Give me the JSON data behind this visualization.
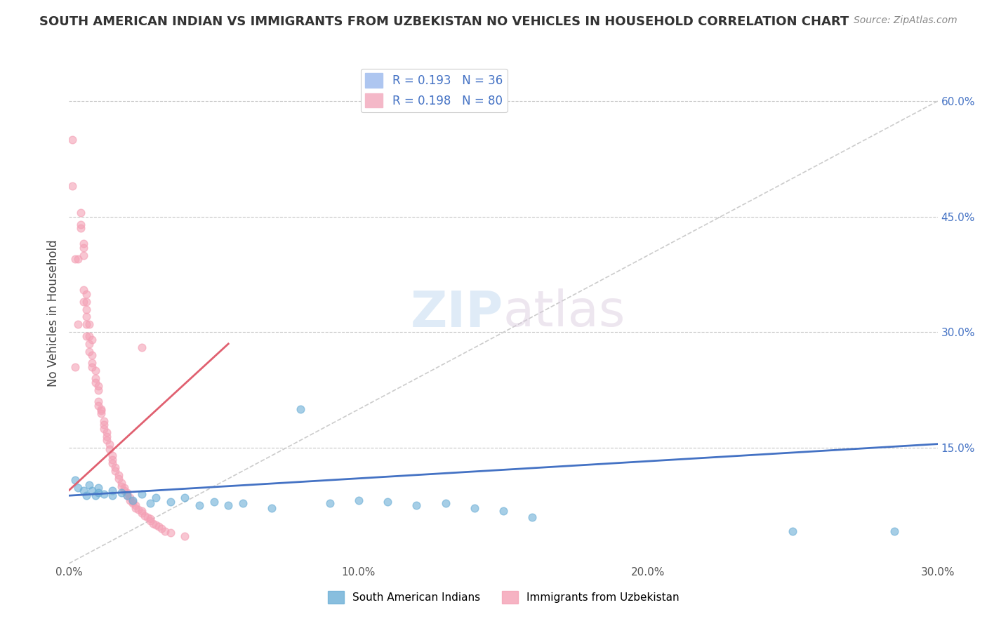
{
  "title": "SOUTH AMERICAN INDIAN VS IMMIGRANTS FROM UZBEKISTAN NO VEHICLES IN HOUSEHOLD CORRELATION CHART",
  "source": "Source: ZipAtlas.com",
  "ylabel": "No Vehicles in Household",
  "xlim": [
    0.0,
    0.3
  ],
  "ylim": [
    0.0,
    0.65
  ],
  "xtick_labels": [
    "0.0%",
    "10.0%",
    "20.0%",
    "30.0%"
  ],
  "xtick_values": [
    0.0,
    0.1,
    0.2,
    0.3
  ],
  "ytick_labels_right": [
    "15.0%",
    "30.0%",
    "45.0%",
    "60.0%"
  ],
  "ytick_values_right": [
    0.15,
    0.3,
    0.45,
    0.6
  ],
  "legend_entries": [
    {
      "label": "R = 0.193   N = 36",
      "color": "#aec6f0"
    },
    {
      "label": "R = 0.198   N = 80",
      "color": "#f4b8c8"
    }
  ],
  "legend_label_bottom": [
    "South American Indians",
    "Immigrants from Uzbekistan"
  ],
  "blue_scatter": [
    [
      0.002,
      0.108
    ],
    [
      0.003,
      0.098
    ],
    [
      0.005,
      0.095
    ],
    [
      0.006,
      0.088
    ],
    [
      0.007,
      0.102
    ],
    [
      0.008,
      0.095
    ],
    [
      0.009,
      0.088
    ],
    [
      0.01,
      0.092
    ],
    [
      0.01,
      0.098
    ],
    [
      0.012,
      0.09
    ],
    [
      0.015,
      0.095
    ],
    [
      0.015,
      0.088
    ],
    [
      0.018,
      0.092
    ],
    [
      0.02,
      0.088
    ],
    [
      0.022,
      0.082
    ],
    [
      0.025,
      0.09
    ],
    [
      0.028,
      0.078
    ],
    [
      0.03,
      0.085
    ],
    [
      0.035,
      0.08
    ],
    [
      0.04,
      0.085
    ],
    [
      0.045,
      0.075
    ],
    [
      0.05,
      0.08
    ],
    [
      0.055,
      0.075
    ],
    [
      0.06,
      0.078
    ],
    [
      0.07,
      0.072
    ],
    [
      0.08,
      0.2
    ],
    [
      0.09,
      0.078
    ],
    [
      0.1,
      0.082
    ],
    [
      0.11,
      0.08
    ],
    [
      0.12,
      0.075
    ],
    [
      0.13,
      0.078
    ],
    [
      0.14,
      0.072
    ],
    [
      0.15,
      0.068
    ],
    [
      0.16,
      0.06
    ],
    [
      0.25,
      0.042
    ],
    [
      0.285,
      0.042
    ]
  ],
  "pink_scatter": [
    [
      0.001,
      0.55
    ],
    [
      0.001,
      0.49
    ],
    [
      0.002,
      0.395
    ],
    [
      0.003,
      0.395
    ],
    [
      0.003,
      0.31
    ],
    [
      0.004,
      0.455
    ],
    [
      0.004,
      0.44
    ],
    [
      0.004,
      0.435
    ],
    [
      0.005,
      0.415
    ],
    [
      0.005,
      0.41
    ],
    [
      0.005,
      0.4
    ],
    [
      0.005,
      0.355
    ],
    [
      0.005,
      0.34
    ],
    [
      0.006,
      0.35
    ],
    [
      0.006,
      0.34
    ],
    [
      0.006,
      0.33
    ],
    [
      0.006,
      0.32
    ],
    [
      0.006,
      0.31
    ],
    [
      0.006,
      0.295
    ],
    [
      0.007,
      0.31
    ],
    [
      0.007,
      0.295
    ],
    [
      0.007,
      0.285
    ],
    [
      0.007,
      0.275
    ],
    [
      0.008,
      0.29
    ],
    [
      0.008,
      0.27
    ],
    [
      0.008,
      0.26
    ],
    [
      0.008,
      0.255
    ],
    [
      0.009,
      0.25
    ],
    [
      0.009,
      0.24
    ],
    [
      0.009,
      0.235
    ],
    [
      0.01,
      0.23
    ],
    [
      0.01,
      0.225
    ],
    [
      0.01,
      0.21
    ],
    [
      0.01,
      0.205
    ],
    [
      0.011,
      0.2
    ],
    [
      0.011,
      0.198
    ],
    [
      0.011,
      0.195
    ],
    [
      0.012,
      0.185
    ],
    [
      0.012,
      0.18
    ],
    [
      0.012,
      0.175
    ],
    [
      0.013,
      0.17
    ],
    [
      0.013,
      0.165
    ],
    [
      0.013,
      0.16
    ],
    [
      0.014,
      0.155
    ],
    [
      0.014,
      0.148
    ],
    [
      0.015,
      0.14
    ],
    [
      0.015,
      0.135
    ],
    [
      0.015,
      0.13
    ],
    [
      0.016,
      0.125
    ],
    [
      0.016,
      0.12
    ],
    [
      0.017,
      0.115
    ],
    [
      0.017,
      0.11
    ],
    [
      0.018,
      0.105
    ],
    [
      0.018,
      0.1
    ],
    [
      0.019,
      0.098
    ],
    [
      0.019,
      0.095
    ],
    [
      0.02,
      0.092
    ],
    [
      0.02,
      0.088
    ],
    [
      0.021,
      0.085
    ],
    [
      0.021,
      0.082
    ],
    [
      0.022,
      0.08
    ],
    [
      0.022,
      0.078
    ],
    [
      0.023,
      0.075
    ],
    [
      0.023,
      0.072
    ],
    [
      0.024,
      0.07
    ],
    [
      0.025,
      0.068
    ],
    [
      0.025,
      0.065
    ],
    [
      0.026,
      0.062
    ],
    [
      0.027,
      0.06
    ],
    [
      0.028,
      0.058
    ],
    [
      0.028,
      0.055
    ],
    [
      0.029,
      0.052
    ],
    [
      0.03,
      0.05
    ],
    [
      0.031,
      0.048
    ],
    [
      0.032,
      0.045
    ],
    [
      0.033,
      0.042
    ],
    [
      0.035,
      0.04
    ],
    [
      0.04,
      0.035
    ],
    [
      0.002,
      0.255
    ],
    [
      0.025,
      0.28
    ]
  ],
  "blue_line_x": [
    0.0,
    0.3
  ],
  "blue_line_y": [
    0.088,
    0.155
  ],
  "pink_line_x": [
    0.0,
    0.055
  ],
  "pink_line_y": [
    0.095,
    0.285
  ],
  "diag_line_x": [
    0.0,
    0.3
  ],
  "diag_line_y": [
    0.0,
    0.6
  ],
  "scatter_alpha": 0.6,
  "scatter_size": 60,
  "blue_color": "#6baed6",
  "pink_color": "#f4a0b5",
  "blue_line_color": "#4472c4",
  "pink_line_color": "#e06070",
  "watermark_zip": "ZIP",
  "watermark_atlas": "atlas",
  "background_color": "#ffffff",
  "grid_color": "#c8c8c8"
}
